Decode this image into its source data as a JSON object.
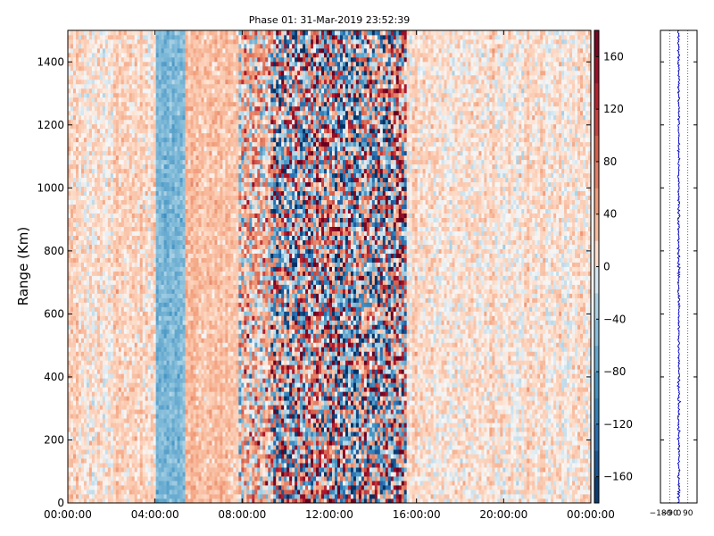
{
  "chart_data": [
    {
      "type": "heatmap",
      "title": "Phase 01: 31-Mar-2019 23:52:39",
      "ylabel": "Range (Km)",
      "xlabel": "",
      "x_ticks": [
        "00:00:00",
        "04:00:00",
        "08:00:00",
        "12:00:00",
        "16:00:00",
        "20:00:00",
        "00:00:00"
      ],
      "y_ticks": [
        0,
        200,
        400,
        600,
        800,
        1000,
        1200,
        1400
      ],
      "ylim": [
        0,
        1500
      ],
      "xlim_hours": [
        0,
        24
      ],
      "colorbar": {
        "ticks": [
          160,
          120,
          80,
          40,
          0,
          -40,
          -80,
          -120,
          -160
        ],
        "tick_labels": [
          "160",
          "120",
          "80",
          "40",
          "0",
          "−40",
          "−80",
          "−120",
          "−160"
        ],
        "range": [
          -180,
          180
        ],
        "colormap": "RdBu_r"
      },
      "time_bands": [
        {
          "start_hour": 0.0,
          "end_hour": 4.0,
          "mean_phase": 12,
          "noise": 22
        },
        {
          "start_hour": 4.0,
          "end_hour": 5.4,
          "mean_phase": -55,
          "noise": 22
        },
        {
          "start_hour": 5.4,
          "end_hour": 7.8,
          "mean_phase": 28,
          "noise": 20
        },
        {
          "start_hour": 7.8,
          "end_hour": 9.3,
          "mean_phase": 30,
          "noise": 90
        },
        {
          "start_hour": 9.3,
          "end_hour": 15.5,
          "mean_phase": 0,
          "noise": 170
        },
        {
          "start_hour": 15.5,
          "end_hour": 24.0,
          "mean_phase": 10,
          "noise": 22
        }
      ]
    },
    {
      "type": "line",
      "x_ticks": [
        -180,
        -90,
        0,
        90
      ],
      "x_tick_labels": [
        "−180",
        "−90",
        "0",
        "90"
      ],
      "xlim": [
        -180,
        180
      ],
      "ylim": [
        0,
        1500
      ],
      "mean_phase": 0,
      "spread": 6,
      "color": "#0000cc"
    }
  ]
}
